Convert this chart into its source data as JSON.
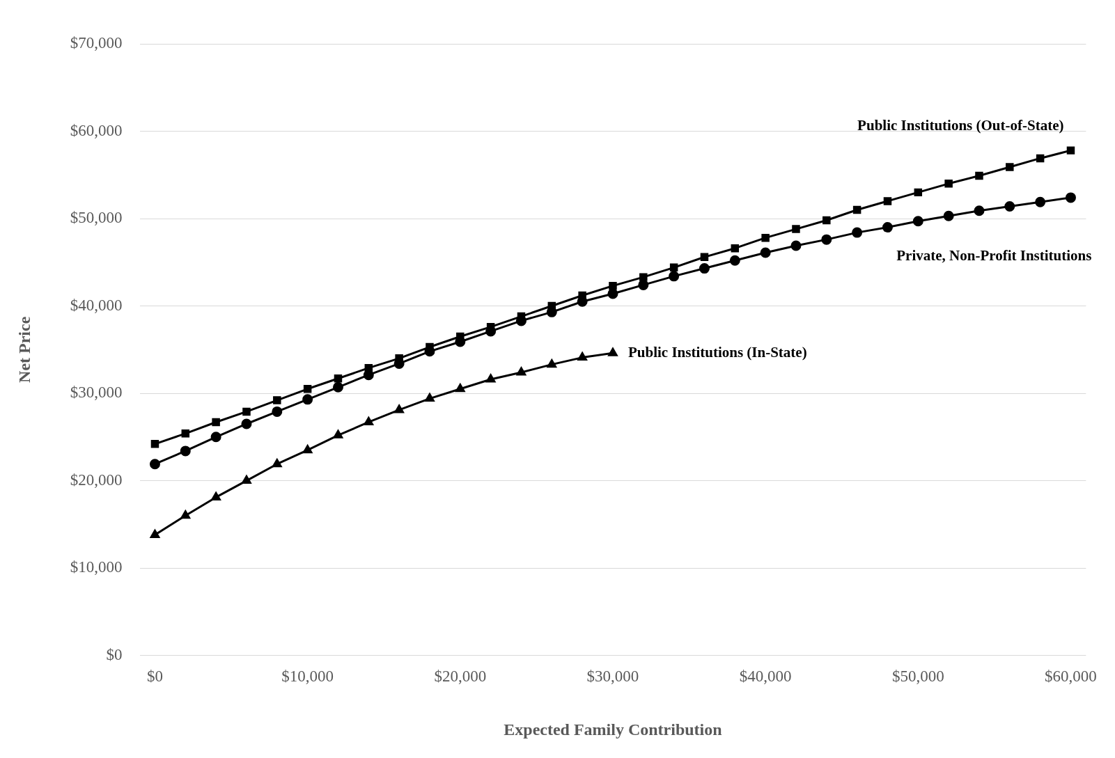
{
  "chart_data": {
    "type": "line",
    "xlabel": "Expected Family Contribution",
    "ylabel": "Net Price",
    "x": [
      0,
      2000,
      4000,
      6000,
      8000,
      10000,
      12000,
      14000,
      16000,
      18000,
      20000,
      22000,
      24000,
      26000,
      28000,
      30000,
      32000,
      34000,
      36000,
      38000,
      40000,
      42000,
      44000,
      46000,
      48000,
      50000,
      52000,
      54000,
      56000,
      58000,
      60000
    ],
    "series": [
      {
        "name": "Public Institutions (Out-of-State)",
        "color": "#000000",
        "marker": "square",
        "values": [
          24200,
          25400,
          26700,
          27900,
          29200,
          30500,
          31700,
          32900,
          34000,
          35300,
          36500,
          37600,
          38800,
          40000,
          41200,
          42300,
          43300,
          44400,
          45600,
          46600,
          47800,
          48800,
          49800,
          51000,
          52000,
          53000,
          54000,
          54900,
          55900,
          56900,
          57800
        ]
      },
      {
        "name": "Private, Non-Profit Institutions",
        "color": "#000000",
        "marker": "circle",
        "values": [
          21900,
          23400,
          25000,
          26500,
          27900,
          29300,
          30700,
          32100,
          33400,
          34800,
          35900,
          37100,
          38300,
          39300,
          40500,
          41400,
          42400,
          43400,
          44300,
          45200,
          46100,
          46900,
          47600,
          48400,
          49000,
          49700,
          50300,
          50900,
          51400,
          51900,
          52400
        ]
      },
      {
        "name": "Public Institutions (In-State)",
        "color": "#000000",
        "marker": "triangle",
        "values": [
          13800,
          16000,
          18100,
          20000,
          21900,
          23500,
          25200,
          26700,
          28100,
          29400,
          30500,
          31600,
          32400,
          33300,
          34100,
          34600,
          null,
          null,
          null,
          null,
          null,
          null,
          null,
          null,
          null,
          null,
          null,
          null,
          null,
          null,
          null
        ]
      }
    ],
    "xlim": [
      -1000,
      61000
    ],
    "xticks": [
      {
        "value": 0,
        "label": "$0"
      },
      {
        "value": 10000,
        "label": "$10,000"
      },
      {
        "value": 20000,
        "label": "$20,000"
      },
      {
        "value": 30000,
        "label": "$30,000"
      },
      {
        "value": 40000,
        "label": "$40,000"
      },
      {
        "value": 50000,
        "label": "$50,000"
      },
      {
        "value": 60000,
        "label": "$60,000"
      }
    ],
    "ylim": [
      0,
      70000
    ],
    "yticks": [
      {
        "value": 0,
        "label": "$0"
      },
      {
        "value": 10000,
        "label": "$10,000"
      },
      {
        "value": 20000,
        "label": "$20,000"
      },
      {
        "value": 30000,
        "label": "$30,000"
      },
      {
        "value": 40000,
        "label": "$40,000"
      },
      {
        "value": 50000,
        "label": "$50,000"
      },
      {
        "value": 60000,
        "label": "$60,000"
      },
      {
        "value": 70000,
        "label": "$70,000"
      }
    ],
    "grid": "y",
    "legend": false,
    "line_style": "solid"
  }
}
